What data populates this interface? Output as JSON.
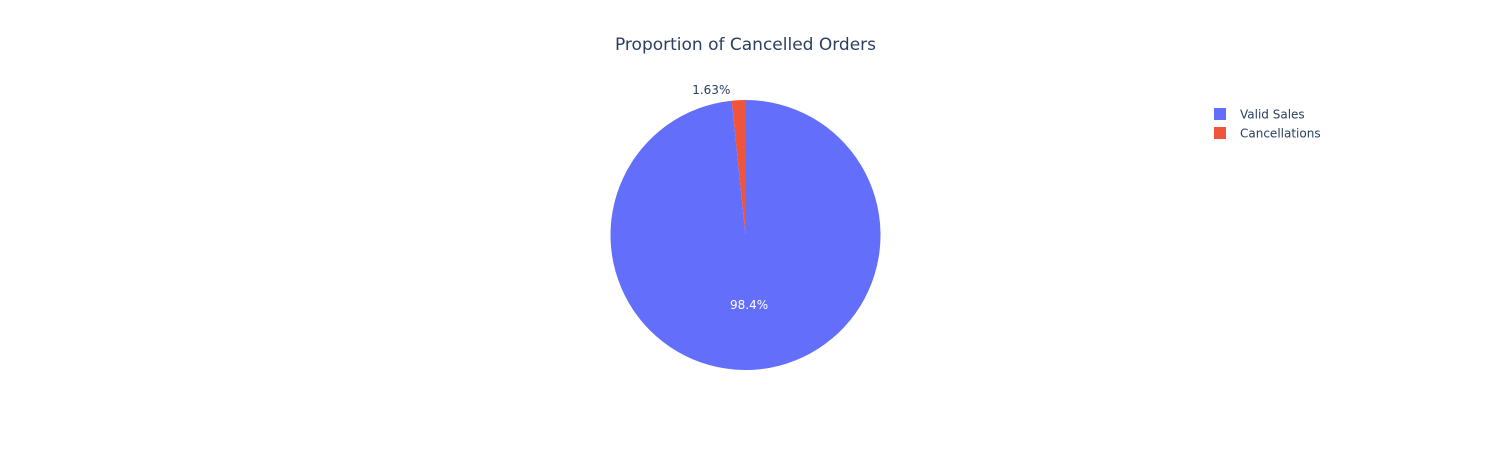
{
  "chart_data": {
    "type": "pie",
    "title": "Proportion of Cancelled Orders",
    "slices": [
      {
        "label": "Valid Sales",
        "value": 98.37,
        "text": "98.4%",
        "color": "#636efa"
      },
      {
        "label": "Cancellations",
        "value": 1.63,
        "text": "1.63%",
        "color": "#ef553b"
      }
    ],
    "direction": "clockwise",
    "start_angle_deg": 0,
    "legend_position": "top-right",
    "label_colors": {
      "inside": "#ffffff",
      "outside": "#2a3f5f"
    },
    "background": "#ffffff"
  }
}
